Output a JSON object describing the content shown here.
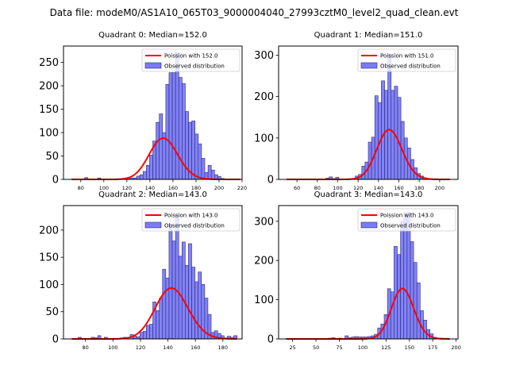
{
  "suptitle": "Data file: modeM0/AS1A10_065T03_9000004040_27993cztM0_level2_quad_clean.evt",
  "colors": {
    "bars": "#7b7bf7",
    "bar_edge": "#2a2a7a",
    "poisson": "#ff0000"
  },
  "chart_data": [
    {
      "type": "bar",
      "title": "Quadrant 0: Median=152.0",
      "legend": [
        "Poission with 152.0",
        "Observed distribution"
      ],
      "legend_position": "top-right",
      "xlim": [
        65,
        220
      ],
      "ylim": [
        0,
        285
      ],
      "xticks": [
        80,
        100,
        120,
        140,
        160,
        180,
        200,
        220
      ],
      "yticks": [
        0,
        50,
        100,
        150,
        200,
        250
      ],
      "bin_start": 72,
      "bin_width": 2.82,
      "values": [
        0,
        0,
        0,
        0,
        4,
        0,
        0,
        0,
        3,
        0,
        0,
        0,
        0,
        0,
        0,
        0,
        1,
        1,
        3,
        3,
        7,
        10,
        17,
        30,
        52,
        82,
        122,
        140,
        100,
        203,
        228,
        228,
        271,
        218,
        205,
        145,
        122,
        125,
        97,
        76,
        45,
        15,
        30,
        20,
        10,
        6,
        2,
        1,
        0,
        0,
        0,
        0
      ],
      "poisson_lambda": 152.0,
      "poisson_scale": 2720
    },
    {
      "type": "bar",
      "title": "Quadrant 1: Median=151.0",
      "legend": [
        "Poission with 151.0",
        "Observed distribution"
      ],
      "legend_position": "top-right",
      "xlim": [
        42,
        218
      ],
      "ylim": [
        0,
        322
      ],
      "xticks": [
        60,
        80,
        100,
        120,
        140,
        160,
        180,
        200
      ],
      "yticks": [
        0,
        100,
        200,
        300
      ],
      "bin_start": 50,
      "bin_width": 3.2,
      "values": [
        0,
        0,
        0,
        0,
        0,
        0,
        0,
        0,
        0,
        0,
        0,
        0,
        3,
        6,
        2,
        5,
        0,
        0,
        0,
        0,
        2,
        8,
        12,
        32,
        42,
        90,
        102,
        202,
        185,
        238,
        215,
        302,
        215,
        225,
        198,
        140,
        100,
        76,
        48,
        28,
        14,
        8,
        4,
        2,
        1,
        0,
        0,
        0,
        0,
        0
      ],
      "poisson_lambda": 151.0,
      "poisson_scale": 3700
    },
    {
      "type": "bar",
      "title": "Quadrant 2: Median=143.0",
      "legend": [
        "Poission with 143.0",
        "Observed distribution"
      ],
      "legend_position": "top-right",
      "xlim": [
        64,
        194
      ],
      "ylim": [
        0,
        245
      ],
      "xticks": [
        80,
        100,
        120,
        140,
        160,
        180
      ],
      "yticks": [
        0,
        50,
        100,
        150,
        200
      ],
      "bin_start": 70,
      "bin_width": 2.36,
      "values": [
        0,
        0,
        3,
        0,
        0,
        0,
        3,
        2,
        6,
        0,
        3,
        0,
        0,
        1,
        0,
        2,
        3,
        0,
        8,
        5,
        4,
        12,
        14,
        25,
        27,
        68,
        52,
        75,
        128,
        112,
        210,
        180,
        228,
        152,
        178,
        135,
        175,
        132,
        105,
        123,
        100,
        75,
        45,
        12,
        15,
        10,
        6,
        2,
        5,
        3,
        6
      ],
      "poisson_lambda": 143.0,
      "poisson_scale": 2800
    },
    {
      "type": "bar",
      "title": "Quadrant 3: Median=143.0",
      "legend": [
        "Poission with 143.0",
        "Observed distribution"
      ],
      "legend_position": "top-right",
      "xlim": [
        10,
        202
      ],
      "ylim": [
        0,
        340
      ],
      "xticks": [
        25,
        50,
        75,
        100,
        125,
        150,
        175,
        200
      ],
      "yticks": [
        0,
        100,
        200,
        300
      ],
      "bin_start": 18,
      "bin_width": 3.5,
      "values": [
        0,
        0,
        0,
        0,
        0,
        0,
        0,
        0,
        0,
        0,
        0,
        0,
        0,
        2,
        3,
        0,
        2,
        0,
        8,
        3,
        5,
        6,
        5,
        5,
        5,
        6,
        8,
        12,
        28,
        38,
        62,
        128,
        120,
        236,
        215,
        300,
        322,
        322,
        248,
        195,
        143,
        72,
        48,
        24,
        13,
        4,
        2,
        2,
        0,
        1
      ],
      "poisson_lambda": 143.0,
      "poisson_scale": 3850
    }
  ]
}
